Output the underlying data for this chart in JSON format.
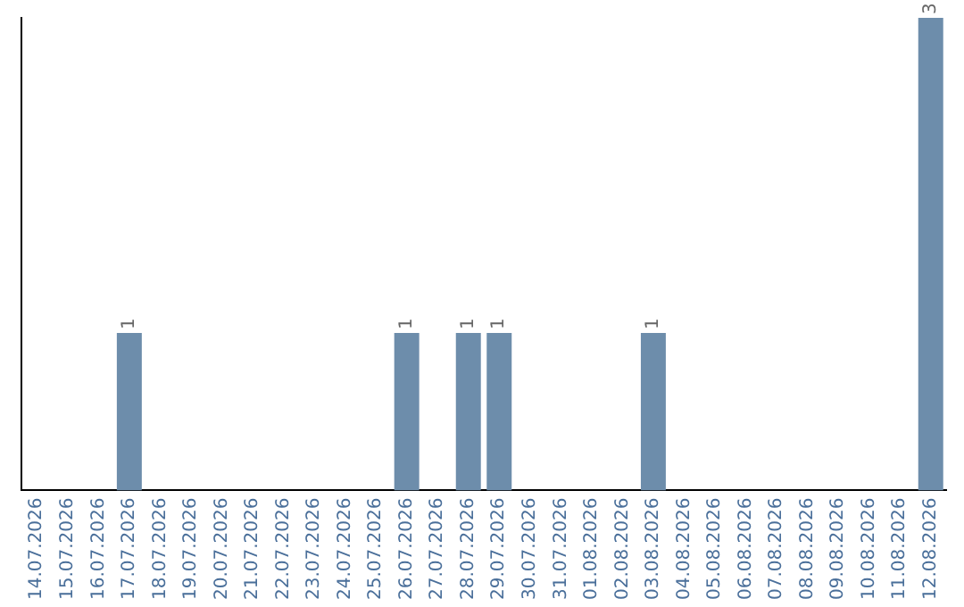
{
  "chart_data": {
    "type": "bar",
    "categories": [
      "14.07.2026",
      "15.07.2026",
      "16.07.2026",
      "17.07.2026",
      "18.07.2026",
      "19.07.2026",
      "20.07.2026",
      "21.07.2026",
      "22.07.2026",
      "23.07.2026",
      "24.07.2026",
      "25.07.2026",
      "26.07.2026",
      "27.07.2026",
      "28.07.2026",
      "29.07.2026",
      "30.07.2026",
      "31.07.2026",
      "01.08.2026",
      "02.08.2026",
      "03.08.2026",
      "04.08.2026",
      "05.08.2026",
      "06.08.2026",
      "07.08.2026",
      "08.08.2026",
      "09.08.2026",
      "10.08.2026",
      "11.08.2026",
      "12.08.2026"
    ],
    "values": [
      0,
      0,
      0,
      1,
      0,
      0,
      0,
      0,
      0,
      0,
      0,
      0,
      1,
      0,
      1,
      1,
      0,
      0,
      0,
      0,
      1,
      0,
      0,
      0,
      0,
      0,
      0,
      0,
      0,
      3
    ],
    "value_labels": [
      null,
      null,
      null,
      "1",
      null,
      null,
      null,
      null,
      null,
      null,
      null,
      null,
      "1",
      null,
      "1",
      "1",
      null,
      null,
      null,
      null,
      "1",
      null,
      null,
      null,
      null,
      null,
      null,
      null,
      null,
      "3"
    ],
    "color": "#6d8dab",
    "grid": false,
    "legend": false,
    "tick_labels": "x"
  }
}
